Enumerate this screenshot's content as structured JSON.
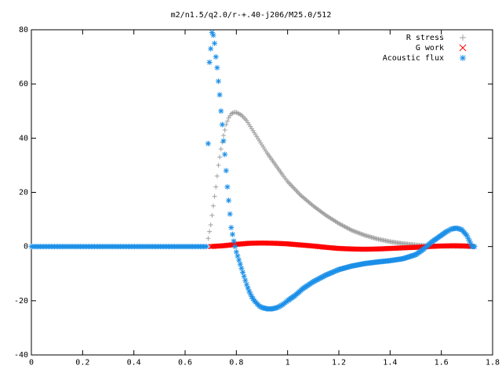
{
  "chart_data": {
    "type": "scatter",
    "title": "m2/n1.5/q2.0/r-+.40-j206/M25.0/512",
    "xlabel": "",
    "ylabel": "",
    "xlim": [
      0,
      1.8
    ],
    "ylim": [
      -40,
      80
    ],
    "x_ticks": [
      "0",
      "0.2",
      "0.4",
      "0.6",
      "0.8",
      "1",
      "1.2",
      "1.4",
      "1.6",
      "1.8"
    ],
    "y_ticks": [
      "-40",
      "-20",
      "0",
      "20",
      "40",
      "60",
      "80"
    ],
    "x_tick_values": [
      0,
      0.2,
      0.4,
      0.6,
      0.8,
      1.0,
      1.2,
      1.4,
      1.6,
      1.8
    ],
    "y_tick_values": [
      -40,
      -20,
      0,
      20,
      40,
      60,
      80
    ],
    "grid": false,
    "legend_position": "top-right",
    "series": [
      {
        "name": "R stress",
        "marker": "plus",
        "color": "#a0a0a0",
        "points": [
          [
            0.69,
            3
          ],
          [
            0.7,
            8
          ],
          [
            0.71,
            15
          ],
          [
            0.72,
            22
          ],
          [
            0.73,
            30
          ],
          [
            0.74,
            36
          ],
          [
            0.75,
            41
          ],
          [
            0.76,
            45
          ],
          [
            0.77,
            47.5
          ],
          [
            0.78,
            49
          ],
          [
            0.79,
            49.5
          ],
          [
            0.8,
            49.5
          ],
          [
            0.82,
            48.5
          ],
          [
            0.84,
            46.5
          ],
          [
            0.86,
            43.5
          ],
          [
            0.88,
            40.5
          ],
          [
            0.9,
            37.5
          ],
          [
            0.92,
            34.5
          ],
          [
            0.95,
            30.5
          ],
          [
            0.98,
            26.5
          ],
          [
            1.0,
            24
          ],
          [
            1.05,
            19
          ],
          [
            1.1,
            15
          ],
          [
            1.15,
            11.5
          ],
          [
            1.2,
            8.5
          ],
          [
            1.25,
            6
          ],
          [
            1.3,
            4.2
          ],
          [
            1.35,
            2.8
          ],
          [
            1.4,
            1.8
          ],
          [
            1.45,
            1.1
          ],
          [
            1.5,
            0.6
          ],
          [
            1.55,
            0.3
          ],
          [
            1.6,
            0.15
          ],
          [
            1.65,
            0.05
          ],
          [
            1.7,
            0
          ],
          [
            1.72,
            0
          ]
        ]
      },
      {
        "name": "G work",
        "marker": "cross",
        "color": "#ff0000",
        "points": [
          [
            0.7,
            0
          ],
          [
            0.75,
            0.3
          ],
          [
            0.8,
            0.8
          ],
          [
            0.85,
            1.2
          ],
          [
            0.9,
            1.3
          ],
          [
            0.95,
            1.2
          ],
          [
            1.0,
            1.0
          ],
          [
            1.05,
            0.6
          ],
          [
            1.1,
            0.2
          ],
          [
            1.15,
            -0.3
          ],
          [
            1.2,
            -0.7
          ],
          [
            1.25,
            -0.9
          ],
          [
            1.3,
            -1.0
          ],
          [
            1.35,
            -0.9
          ],
          [
            1.4,
            -0.7
          ],
          [
            1.45,
            -0.5
          ],
          [
            1.5,
            -0.3
          ],
          [
            1.55,
            0.0
          ],
          [
            1.6,
            0.2
          ],
          [
            1.65,
            0.3
          ],
          [
            1.7,
            0.2
          ],
          [
            1.72,
            0
          ]
        ]
      },
      {
        "name": "Acoustic flux",
        "marker": "star",
        "color": "#1a8fe8",
        "points": [
          [
            0.69,
            38
          ],
          [
            0.695,
            68
          ],
          [
            0.7,
            73
          ],
          [
            0.705,
            79
          ],
          [
            0.71,
            78
          ],
          [
            0.715,
            75
          ],
          [
            0.72,
            70
          ],
          [
            0.725,
            66
          ],
          [
            0.73,
            61
          ],
          [
            0.735,
            56
          ],
          [
            0.74,
            50
          ],
          [
            0.745,
            45
          ],
          [
            0.75,
            39
          ],
          [
            0.755,
            34
          ],
          [
            0.76,
            28
          ],
          [
            0.765,
            22
          ],
          [
            0.77,
            17
          ],
          [
            0.775,
            12
          ],
          [
            0.78,
            7
          ],
          [
            0.79,
            2
          ],
          [
            0.8,
            -2
          ],
          [
            0.81,
            -5
          ],
          [
            0.82,
            -8
          ],
          [
            0.83,
            -11
          ],
          [
            0.84,
            -14
          ],
          [
            0.85,
            -16.5
          ],
          [
            0.86,
            -18.5
          ],
          [
            0.87,
            -20
          ],
          [
            0.88,
            -21
          ],
          [
            0.89,
            -22
          ],
          [
            0.9,
            -22.5
          ],
          [
            0.92,
            -23
          ],
          [
            0.94,
            -23
          ],
          [
            0.96,
            -22.5
          ],
          [
            0.98,
            -21.5
          ],
          [
            1.0,
            -20
          ],
          [
            1.03,
            -18
          ],
          [
            1.06,
            -15.5
          ],
          [
            1.1,
            -13
          ],
          [
            1.15,
            -10.5
          ],
          [
            1.2,
            -8.5
          ],
          [
            1.25,
            -7.2
          ],
          [
            1.3,
            -6.3
          ],
          [
            1.35,
            -5.7
          ],
          [
            1.4,
            -5.2
          ],
          [
            1.45,
            -4.5
          ],
          [
            1.5,
            -3
          ],
          [
            1.53,
            -1
          ],
          [
            1.56,
            1.5
          ],
          [
            1.59,
            3.5
          ],
          [
            1.62,
            5.5
          ],
          [
            1.64,
            6.5
          ],
          [
            1.66,
            6.8
          ],
          [
            1.68,
            6.2
          ],
          [
            1.7,
            4
          ],
          [
            1.71,
            2
          ],
          [
            1.72,
            0
          ],
          [
            1.73,
            0
          ]
        ]
      }
    ]
  }
}
